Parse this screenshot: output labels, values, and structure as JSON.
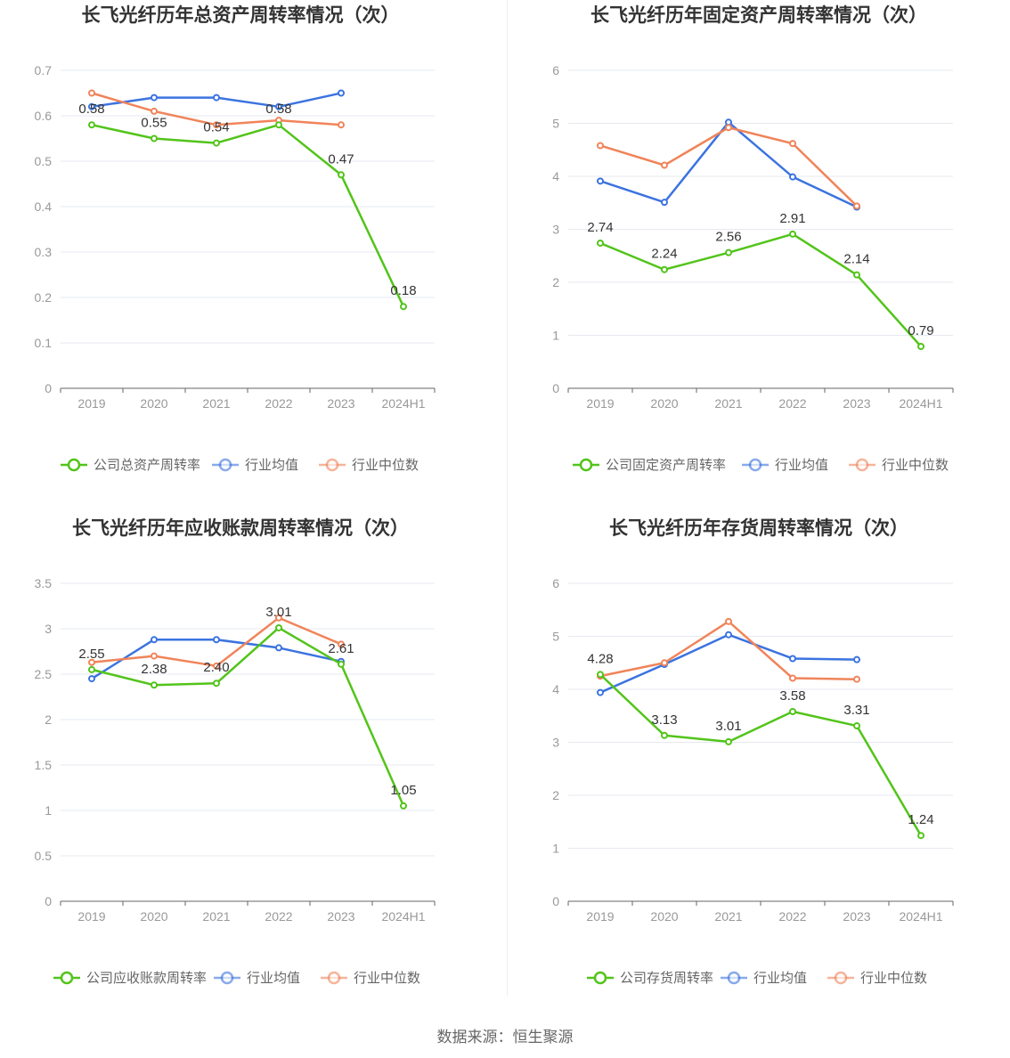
{
  "source": "数据来源：恒生聚源",
  "chart_data": [
    {
      "type": "line",
      "title": "长飞光纤历年总资产周转率情况（次）",
      "categories": [
        "2019",
        "2020",
        "2021",
        "2022",
        "2023",
        "2024H1"
      ],
      "ylim": [
        0,
        0.7
      ],
      "yticks": [
        "0",
        "0.1",
        "0.2",
        "0.3",
        "0.4",
        "0.5",
        "0.6",
        "0.7"
      ],
      "grid": true,
      "legend_position": "bottom",
      "series": [
        {
          "name": "公司总资产周转率",
          "color": "#52c41a",
          "values": [
            0.58,
            0.55,
            0.54,
            0.58,
            0.47,
            0.18
          ],
          "labels": [
            "0.58",
            "0.55",
            "0.54",
            "0.58",
            "0.47",
            "0.18"
          ]
        },
        {
          "name": "行业均值",
          "color": "#3b73e0",
          "values": [
            0.62,
            0.64,
            0.64,
            0.62,
            0.65,
            null
          ]
        },
        {
          "name": "行业中位数",
          "color": "#f0845a",
          "values": [
            0.65,
            0.61,
            0.58,
            0.59,
            0.58,
            null
          ]
        }
      ]
    },
    {
      "type": "line",
      "title": "长飞光纤历年固定资产周转率情况（次）",
      "categories": [
        "2019",
        "2020",
        "2021",
        "2022",
        "2023",
        "2024H1"
      ],
      "ylim": [
        0,
        6
      ],
      "yticks": [
        "0",
        "1",
        "2",
        "3",
        "4",
        "5",
        "6"
      ],
      "grid": true,
      "legend_position": "bottom",
      "series": [
        {
          "name": "公司固定资产周转率",
          "color": "#52c41a",
          "values": [
            2.74,
            2.24,
            2.56,
            2.91,
            2.14,
            0.79
          ],
          "labels": [
            "2.74",
            "2.24",
            "2.56",
            "2.91",
            "2.14",
            "0.79"
          ]
        },
        {
          "name": "行业均值",
          "color": "#3b73e0",
          "values": [
            3.91,
            3.51,
            5.02,
            3.99,
            3.42,
            null
          ]
        },
        {
          "name": "行业中位数",
          "color": "#f0845a",
          "values": [
            4.58,
            4.21,
            4.92,
            4.62,
            3.44,
            null
          ]
        }
      ]
    },
    {
      "type": "line",
      "title": "长飞光纤历年应收账款周转率情况（次）",
      "categories": [
        "2019",
        "2020",
        "2021",
        "2022",
        "2023",
        "2024H1"
      ],
      "ylim": [
        0,
        3.5
      ],
      "yticks": [
        "0",
        "0.5",
        "1",
        "1.5",
        "2",
        "2.5",
        "3",
        "3.5"
      ],
      "grid": true,
      "legend_position": "bottom",
      "series": [
        {
          "name": "公司应收账款周转率",
          "color": "#52c41a",
          "values": [
            2.55,
            2.38,
            2.4,
            3.01,
            2.61,
            1.05
          ],
          "labels": [
            "2.55",
            "2.38",
            "2.40",
            "3.01",
            "2.61",
            "1.05"
          ]
        },
        {
          "name": "行业均值",
          "color": "#3b73e0",
          "values": [
            2.45,
            2.88,
            2.88,
            2.79,
            2.64,
            null
          ]
        },
        {
          "name": "行业中位数",
          "color": "#f0845a",
          "values": [
            2.63,
            2.7,
            2.59,
            3.12,
            2.83,
            null
          ]
        }
      ]
    },
    {
      "type": "line",
      "title": "长飞光纤历年存货周转率情况（次）",
      "categories": [
        "2019",
        "2020",
        "2021",
        "2022",
        "2023",
        "2024H1"
      ],
      "ylim": [
        0,
        6
      ],
      "yticks": [
        "0",
        "1",
        "2",
        "3",
        "4",
        "5",
        "6"
      ],
      "grid": true,
      "legend_position": "bottom",
      "series": [
        {
          "name": "公司存货周转率",
          "color": "#52c41a",
          "values": [
            4.28,
            3.13,
            3.01,
            3.58,
            3.31,
            1.24
          ],
          "labels": [
            "4.28",
            "3.13",
            "3.01",
            "3.58",
            "3.31",
            "1.24"
          ]
        },
        {
          "name": "行业均值",
          "color": "#3b73e0",
          "values": [
            3.94,
            4.47,
            5.03,
            4.58,
            4.56,
            null
          ]
        },
        {
          "name": "行业中位数",
          "color": "#f0845a",
          "values": [
            4.25,
            4.5,
            5.28,
            4.21,
            4.19,
            null
          ]
        }
      ]
    }
  ]
}
